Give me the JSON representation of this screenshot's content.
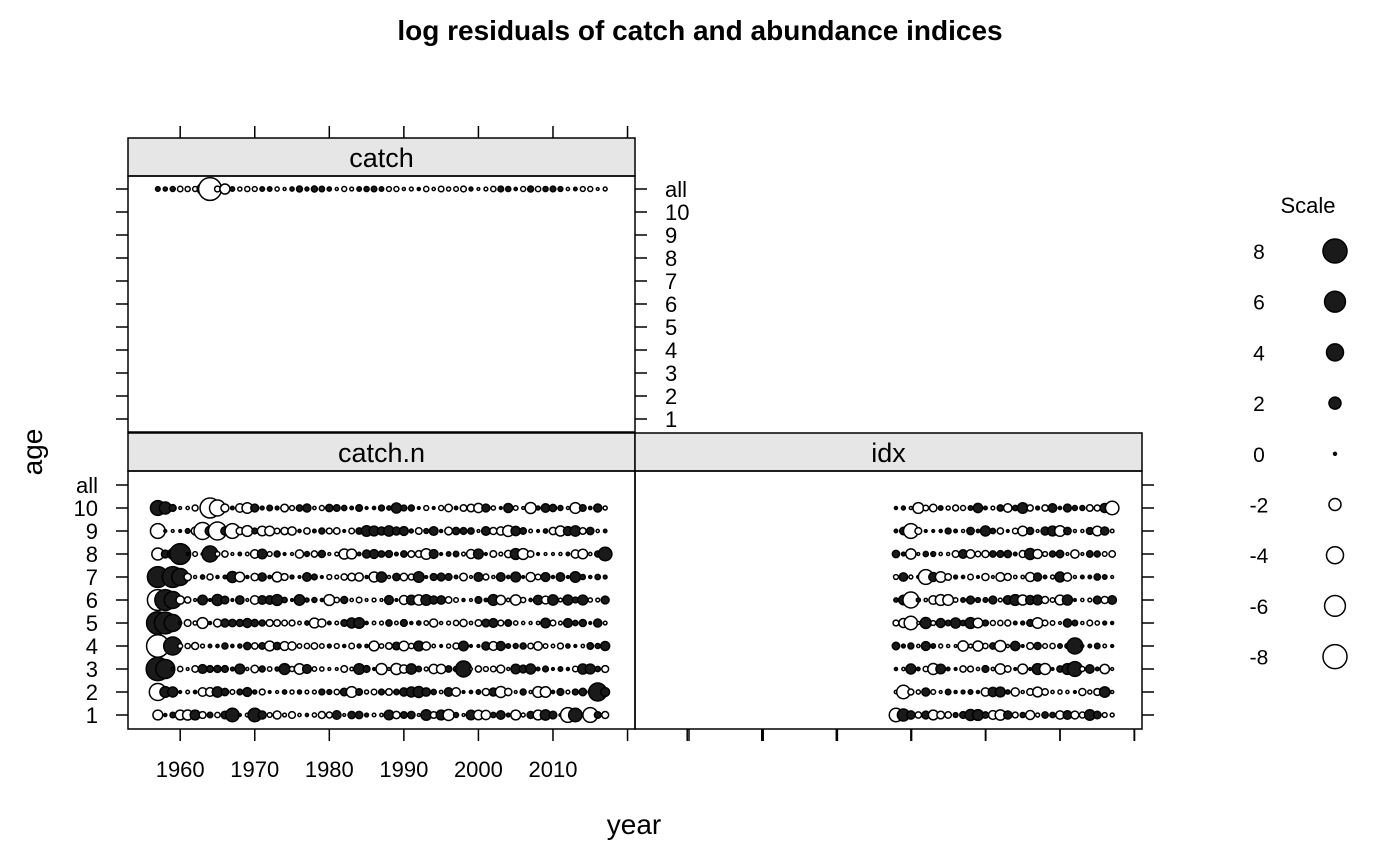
{
  "chart_data": {
    "type": "scatter",
    "subtype": "bubble-residual-plot",
    "title": "log residuals of catch and abundance indices",
    "xlabel": "year",
    "ylabel": "age",
    "xlim": [
      1953,
      2021
    ],
    "x_ticks": [
      1960,
      1970,
      1980,
      1990,
      2000,
      2010
    ],
    "y_levels": [
      "1",
      "2",
      "3",
      "4",
      "5",
      "6",
      "7",
      "8",
      "9",
      "10",
      "all"
    ],
    "colors": {
      "positive": "#1a1a1a",
      "negative_fill": "#ffffff",
      "outline": "#000000",
      "strip": "#e6e6e6"
    },
    "legend": {
      "title": "Scale",
      "placement": "right",
      "values": [
        8,
        6,
        4,
        2,
        0,
        -2,
        -4,
        -6,
        -8
      ]
    },
    "panels": [
      {
        "name": "catch",
        "year_start": 1957,
        "year_end": 2017,
        "highlights": [
          {
            "age": "all",
            "year": 1963,
            "value": -1.6
          },
          {
            "age": "all",
            "year": 1964,
            "value": -7.2
          },
          {
            "age": "all",
            "year": 1966,
            "value": -1.4
          }
        ]
      },
      {
        "name": "catch.n",
        "year_start": 1957,
        "year_end": 2017,
        "highlights": [
          {
            "age": "10",
            "year": 1957,
            "value": 3.0
          },
          {
            "age": "10",
            "year": 1958,
            "value": 2.0
          },
          {
            "age": "10",
            "year": 1964,
            "value": -5.5
          },
          {
            "age": "10",
            "year": 1965,
            "value": -3.5
          },
          {
            "age": "9",
            "year": 1957,
            "value": -3.0
          },
          {
            "age": "9",
            "year": 1963,
            "value": -4.0
          },
          {
            "age": "9",
            "year": 1965,
            "value": -4.5
          },
          {
            "age": "9",
            "year": 1967,
            "value": -3.0
          },
          {
            "age": "8",
            "year": 1957,
            "value": -2.0
          },
          {
            "age": "8",
            "year": 1960,
            "value": 6.0
          },
          {
            "age": "8",
            "year": 1964,
            "value": 3.5
          },
          {
            "age": "8",
            "year": 2017,
            "value": 2.5
          },
          {
            "age": "7",
            "year": 1957,
            "value": 6.0
          },
          {
            "age": "7",
            "year": 1959,
            "value": 6.0
          },
          {
            "age": "7",
            "year": 1960,
            "value": 4.0
          },
          {
            "age": "6",
            "year": 1957,
            "value": -6.0
          },
          {
            "age": "6",
            "year": 1958,
            "value": 6.0
          },
          {
            "age": "6",
            "year": 1959,
            "value": 4.0
          },
          {
            "age": "5",
            "year": 1957,
            "value": 7.0
          },
          {
            "age": "5",
            "year": 1958,
            "value": 6.5
          },
          {
            "age": "5",
            "year": 1959,
            "value": 4.0
          },
          {
            "age": "4",
            "year": 1957,
            "value": -7.0
          },
          {
            "age": "4",
            "year": 1959,
            "value": 4.5
          },
          {
            "age": "3",
            "year": 1957,
            "value": 7.5
          },
          {
            "age": "3",
            "year": 1958,
            "value": 5.0
          },
          {
            "age": "3",
            "year": 1998,
            "value": 3.5
          },
          {
            "age": "2",
            "year": 1957,
            "value": -4.0
          },
          {
            "age": "2",
            "year": 2016,
            "value": 4.5
          },
          {
            "age": "1",
            "year": 1967,
            "value": 2.5
          },
          {
            "age": "1",
            "year": 1970,
            "value": 2.5
          },
          {
            "age": "1",
            "year": 2012,
            "value": -3.0
          },
          {
            "age": "1",
            "year": 2013,
            "value": 2.5
          },
          {
            "age": "1",
            "year": 2015,
            "value": -3.0
          }
        ]
      },
      {
        "name": "idx",
        "year_start": 1988,
        "year_end": 2017,
        "highlights": [
          {
            "age": "10",
            "year": 2017,
            "value": -2.5
          },
          {
            "age": "9",
            "year": 1990,
            "value": -3.0
          },
          {
            "age": "7",
            "year": 1992,
            "value": -3.0
          },
          {
            "age": "6",
            "year": 1990,
            "value": -3.5
          },
          {
            "age": "5",
            "year": 1990,
            "value": -2.5
          },
          {
            "age": "4",
            "year": 2012,
            "value": 3.5
          },
          {
            "age": "3",
            "year": 2012,
            "value": 3.0
          },
          {
            "age": "2",
            "year": 1989,
            "value": -2.5
          },
          {
            "age": "1",
            "year": 1988,
            "value": -2.5
          },
          {
            "age": "1",
            "year": 1989,
            "value": 2.0
          }
        ]
      }
    ]
  }
}
